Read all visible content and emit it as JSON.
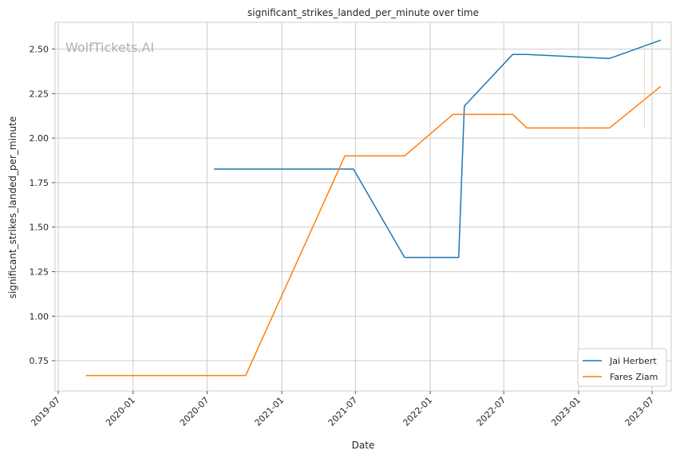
{
  "watermark": "WolfTickets.AI",
  "chart_data": {
    "type": "line",
    "title": "significant_strikes_landed_per_minute over time",
    "xlabel": "Date",
    "ylabel": "significant_strikes_landed_per_minute",
    "xlim": [
      "2019-06-23",
      "2023-08-17"
    ],
    "ylim": [
      0.58,
      2.65
    ],
    "x_ticks": [
      "2019-07",
      "2020-01",
      "2020-07",
      "2021-01",
      "2021-07",
      "2022-01",
      "2022-07",
      "2023-01",
      "2023-07"
    ],
    "y_ticks": [
      "0.75",
      "1.00",
      "1.25",
      "1.50",
      "1.75",
      "2.00",
      "2.25",
      "2.50"
    ],
    "grid": true,
    "legend_position": "lower-right",
    "series": [
      {
        "name": "Jai Herbert",
        "color": "#1f77b4",
        "x": [
          "2020-07-18",
          "2021-06-26",
          "2021-10-30",
          "2022-03-12",
          "2022-03-26",
          "2022-07-23",
          "2022-08-27",
          "2023-03-18",
          "2023-07-22"
        ],
        "y": [
          1.826,
          1.826,
          1.33,
          1.33,
          2.18,
          2.47,
          2.47,
          2.447,
          2.55
        ]
      },
      {
        "name": "Fares Ziam",
        "color": "#ff7f0e",
        "x": [
          "2019-09-07",
          "2020-10-04",
          "2021-06-05",
          "2021-10-30",
          "2022-02-26",
          "2022-07-23",
          "2022-08-27",
          "2023-03-18",
          "2023-07-22"
        ],
        "y": [
          0.667,
          0.667,
          1.9,
          1.9,
          2.133,
          2.133,
          2.057,
          2.057,
          2.29
        ]
      }
    ]
  }
}
